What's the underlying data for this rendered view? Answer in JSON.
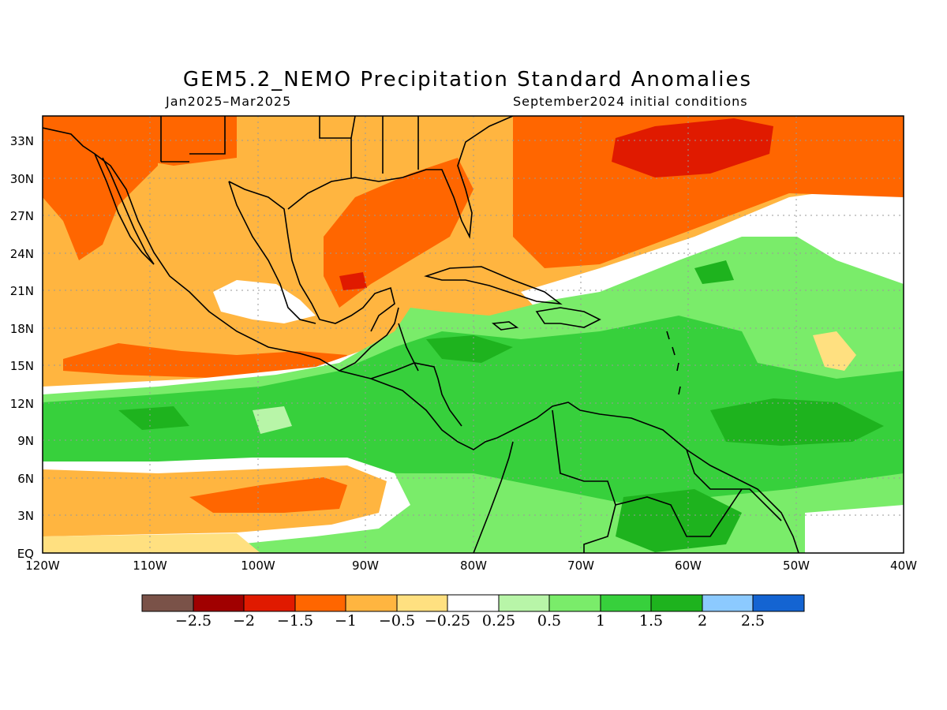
{
  "title": "GEM5.2_NEMO Precipitation Standard Anomalies",
  "period": "Jan2025–Mar2025",
  "init": "September2024 initial conditions",
  "lat_labels": [
    "33N",
    "30N",
    "27N",
    "24N",
    "21N",
    "18N",
    "15N",
    "12N",
    "9N",
    "6N",
    "3N",
    "EQ"
  ],
  "lon_labels": [
    "120W",
    "110W",
    "100W",
    "90W",
    "80W",
    "70W",
    "60W",
    "50W",
    "40W"
  ],
  "map": {
    "lon_range": [
      -120,
      -40
    ],
    "lat_range": [
      0,
      35
    ],
    "grid": "dotted"
  },
  "colorbar": {
    "colors": [
      "#7a5248",
      "#a00000",
      "#e01a00",
      "#ff6600",
      "#ffb540",
      "#ffe080",
      "#ffffff",
      "#b8f5a8",
      "#7aec6a",
      "#37d03c",
      "#1eb31e",
      "#8ccaff",
      "#1464d2"
    ],
    "labels": [
      "−2.5",
      "−2",
      "−1.5",
      "−1",
      "−0.5",
      "−0.25",
      "0.25",
      "0.5",
      "1",
      "1.5",
      "2",
      "2.5"
    ]
  },
  "colors": {
    "orange_light": "#ffb540",
    "orange": "#ff6600",
    "red": "#e01a00",
    "yellow": "#ffe080",
    "green_pale": "#b8f5a8",
    "green_light": "#7aec6a",
    "green": "#37d03c",
    "green_dark": "#1eb31e"
  }
}
